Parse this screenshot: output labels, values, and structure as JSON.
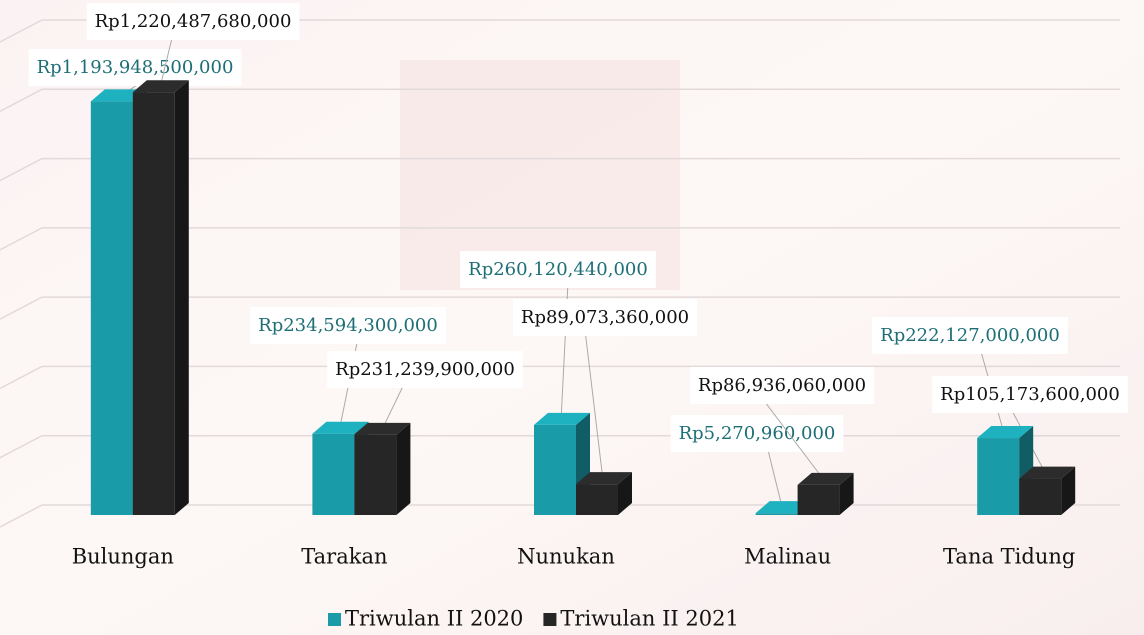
{
  "chart_data": {
    "type": "bar3d",
    "categories": [
      "Bulungan",
      "Tarakan",
      "Nunukan",
      "Malinau",
      "Tana Tidung"
    ],
    "series": [
      {
        "name": "Triwulan II 2020",
        "color": "#1a9ba8",
        "label_color": "#1d6f75",
        "values": [
          1193948500000,
          234594300000,
          260120440000,
          5270960000,
          222127000000
        ],
        "value_labels": [
          "Rp1,193,948,500,000",
          "Rp234,594,300,000",
          "Rp260,120,440,000",
          "Rp5,270,960,000",
          "Rp222,127,000,000"
        ]
      },
      {
        "name": "Triwulan II 2021",
        "color": "#262626",
        "label_color": "#111111",
        "values": [
          1220487680000,
          231239900000,
          89073360000,
          86936060000,
          105173600000
        ],
        "value_labels": [
          "Rp1,220,487,680,000",
          "Rp231,239,900,000",
          "Rp89,073,360,000",
          "Rp86,936,060,000",
          "Rp105,173,600,000"
        ]
      }
    ],
    "ylim": [
      0,
      1400000000000
    ],
    "yticks": [
      0,
      200000000000,
      400000000000,
      600000000000,
      800000000000,
      1000000000000,
      1200000000000,
      1400000000000
    ],
    "grid": true,
    "legend": "bottom"
  }
}
